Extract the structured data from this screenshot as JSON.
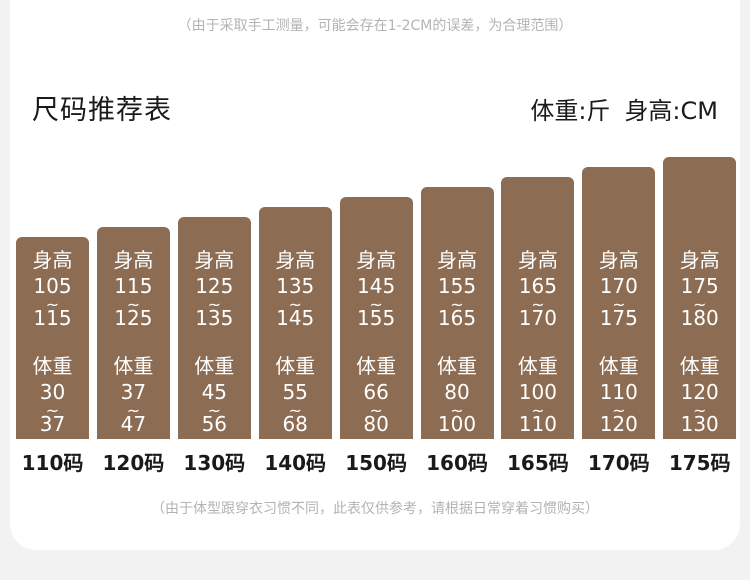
{
  "top_note": "（由于采取手工测量，可能会存在1-2CM的误差，为合理范围）",
  "title": "尺码推荐表",
  "units": {
    "weight": "体重:斤",
    "height": "身高:CM"
  },
  "labels": {
    "height": "身高",
    "weight": "体重",
    "tilde": "~"
  },
  "bar_color": "#8c6c52",
  "chart_data": {
    "type": "table",
    "categories": [
      "110码",
      "120码",
      "130码",
      "140码",
      "150码",
      "160码",
      "165码",
      "170码",
      "175码"
    ],
    "series": [
      {
        "name": "身高",
        "values": [
          [
            105,
            115
          ],
          [
            115,
            125
          ],
          [
            125,
            135
          ],
          [
            135,
            145
          ],
          [
            145,
            155
          ],
          [
            155,
            165
          ],
          [
            165,
            170
          ],
          [
            170,
            175
          ],
          [
            175,
            180
          ]
        ]
      },
      {
        "name": "体重",
        "values": [
          [
            30,
            37
          ],
          [
            37,
            47
          ],
          [
            45,
            56
          ],
          [
            55,
            68
          ],
          [
            66,
            80
          ],
          [
            80,
            100
          ],
          [
            100,
            110
          ],
          [
            110,
            120
          ],
          [
            120,
            130
          ]
        ]
      }
    ]
  },
  "bottom_note": "（由于体型跟穿衣习惯不同，此表仅供参考，请根据日常穿着习惯购买）"
}
